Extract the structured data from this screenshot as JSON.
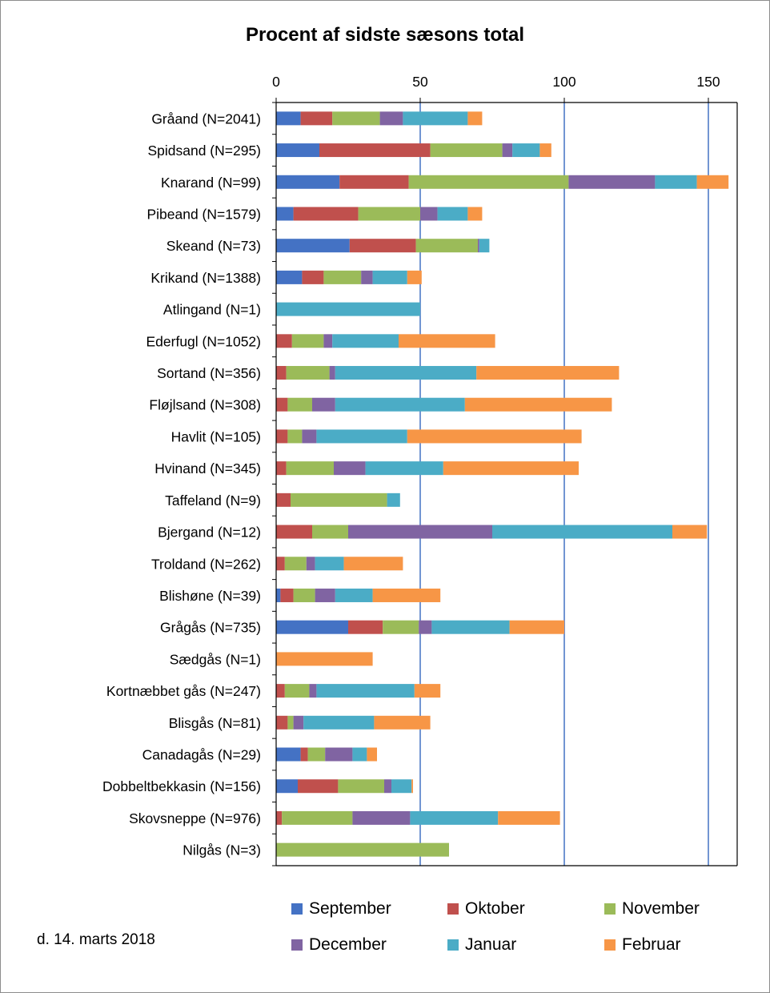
{
  "footer": {
    "date": "d. 14. marts  2018"
  },
  "chart_data": {
    "type": "bar",
    "orientation": "horizontal",
    "stacked": true,
    "title": "Procent af sidste sæsons total",
    "xlim": [
      0,
      160
    ],
    "xticks": [
      0,
      50,
      100,
      150
    ],
    "xaxis_position": "top",
    "grid": "vertical major gridlines",
    "legend_position": "bottom",
    "colors": {
      "September": "#4472c4",
      "Oktober": "#c0504d",
      "November": "#9bbb59",
      "December": "#8064a2",
      "Januar": "#4bacc6",
      "Februar": "#f79646"
    },
    "categories": [
      "Gråand (N=2041)",
      "Spidsand (N=295)",
      "Knarand (N=99)",
      "Pibeand (N=1579)",
      "Skeand (N=73)",
      "Krikand (N=1388)",
      "Atlingand (N=1)",
      "Ederfugl (N=1052)",
      "Sortand (N=356)",
      "Fløjlsand (N=308)",
      "Havlit (N=105)",
      "Hvinand (N=345)",
      "Taffeland (N=9)",
      "Bjergand (N=12)",
      "Troldand (N=262)",
      "Blishøne (N=39)",
      "Grågås (N=735)",
      "Sædgås (N=1)",
      "Kortnæbbet gås (N=247)",
      "Blisgås (N=81)",
      "Canadagås (N=29)",
      "Dobbeltbekkasin (N=156)",
      "Skovsneppe (N=976)",
      "Nilgås (N=3)"
    ],
    "series": [
      {
        "name": "September",
        "values": [
          8.5,
          15,
          22,
          6,
          25.5,
          9,
          0,
          0,
          0,
          0,
          0,
          0,
          0,
          0,
          0,
          1.5,
          25,
          0,
          0,
          0,
          8.5,
          7.5,
          0,
          0
        ]
      },
      {
        "name": "Oktober",
        "values": [
          11,
          38.5,
          24,
          22.5,
          23,
          7.5,
          0,
          5.5,
          3.5,
          4,
          4,
          3.5,
          5,
          12.5,
          3,
          4.5,
          12,
          0,
          3,
          4,
          2.5,
          14,
          2,
          0
        ]
      },
      {
        "name": "November",
        "values": [
          16.5,
          25,
          55.5,
          21.5,
          21.5,
          13,
          0,
          11,
          15,
          8.5,
          5,
          16.5,
          33.5,
          12.5,
          7.5,
          7.5,
          12.5,
          0,
          8.5,
          2,
          6,
          16,
          24.5,
          60
        ]
      },
      {
        "name": "December",
        "values": [
          8,
          3.5,
          30,
          6,
          0.5,
          4,
          0,
          3,
          2,
          8,
          5,
          11,
          0,
          50,
          3,
          7,
          4.5,
          0,
          2.5,
          3.5,
          9.5,
          2.5,
          20,
          0
        ]
      },
      {
        "name": "Januar",
        "values": [
          22.5,
          9.5,
          14.5,
          10.5,
          3.5,
          12,
          50,
          23,
          49,
          45,
          31.5,
          27,
          4.5,
          62.5,
          10,
          13,
          27,
          0,
          34,
          24.5,
          5,
          7,
          30.5,
          0
        ]
      },
      {
        "name": "Februar",
        "values": [
          5,
          4,
          11,
          5,
          0,
          5,
          0,
          33.5,
          49.5,
          51,
          60.5,
          47,
          0,
          12,
          20.5,
          23.5,
          19,
          33.5,
          9,
          19.5,
          3.5,
          0.5,
          21.5,
          0
        ]
      }
    ]
  }
}
